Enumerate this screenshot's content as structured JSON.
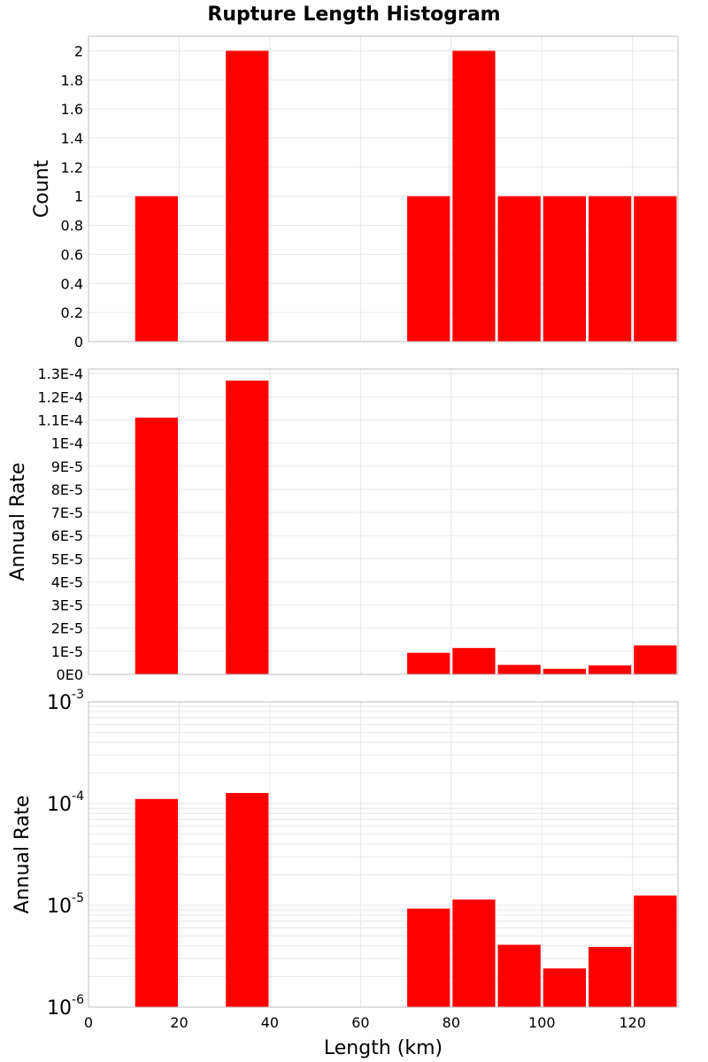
{
  "chart_data": {
    "title": "Rupture Length Histogram",
    "xlabel": "Length (km)",
    "xlim": [
      0,
      130
    ],
    "x_ticks": [
      "0",
      "20",
      "40",
      "60",
      "80",
      "100",
      "120"
    ],
    "bar_color": "#ff0000",
    "grid": true,
    "panels": [
      {
        "type": "bar",
        "ylabel": "Count",
        "yscale": "linear",
        "ylim": [
          0,
          2.1
        ],
        "y_ticks": [
          {
            "v": 0,
            "label": "0"
          },
          {
            "v": 0.2,
            "label": "0.2"
          },
          {
            "v": 0.4,
            "label": "0.4"
          },
          {
            "v": 0.6,
            "label": "0.6"
          },
          {
            "v": 0.8,
            "label": "0.8"
          },
          {
            "v": 1,
            "label": "1"
          },
          {
            "v": 1.2,
            "label": "1.2"
          },
          {
            "v": 1.4,
            "label": "1.4"
          },
          {
            "v": 1.6,
            "label": "1.6"
          },
          {
            "v": 1.8,
            "label": "1.8"
          },
          {
            "v": 2,
            "label": "2"
          }
        ],
        "bars": [
          {
            "x0": 10,
            "x1": 20,
            "value": 1
          },
          {
            "x0": 30,
            "x1": 40,
            "value": 2
          },
          {
            "x0": 70,
            "x1": 80,
            "value": 1
          },
          {
            "x0": 80,
            "x1": 90,
            "value": 2
          },
          {
            "x0": 90,
            "x1": 100,
            "value": 1
          },
          {
            "x0": 100,
            "x1": 110,
            "value": 1
          },
          {
            "x0": 110,
            "x1": 120,
            "value": 1
          },
          {
            "x0": 120,
            "x1": 130,
            "value": 1
          }
        ]
      },
      {
        "type": "bar",
        "ylabel": "Annual Rate",
        "yscale": "linear",
        "ylim": [
          0,
          0.000132
        ],
        "y_ticks": [
          {
            "v": 0,
            "label": "0E0"
          },
          {
            "v": 1e-05,
            "label": "1E-5"
          },
          {
            "v": 2e-05,
            "label": "2E-5"
          },
          {
            "v": 3e-05,
            "label": "3E-5"
          },
          {
            "v": 4e-05,
            "label": "4E-5"
          },
          {
            "v": 5e-05,
            "label": "5E-5"
          },
          {
            "v": 6e-05,
            "label": "6E-5"
          },
          {
            "v": 7e-05,
            "label": "7E-5"
          },
          {
            "v": 8e-05,
            "label": "8E-5"
          },
          {
            "v": 9e-05,
            "label": "9E-5"
          },
          {
            "v": 0.0001,
            "label": "1E-4"
          },
          {
            "v": 0.00011,
            "label": "1.1E-4"
          },
          {
            "v": 0.00012,
            "label": "1.2E-4"
          },
          {
            "v": 0.00013,
            "label": "1.3E-4"
          }
        ],
        "bars": [
          {
            "x0": 10,
            "x1": 20,
            "value": 0.000111
          },
          {
            "x0": 30,
            "x1": 40,
            "value": 0.000127
          },
          {
            "x0": 70,
            "x1": 80,
            "value": 9.3e-06
          },
          {
            "x0": 80,
            "x1": 90,
            "value": 1.14e-05
          },
          {
            "x0": 90,
            "x1": 100,
            "value": 4.1e-06
          },
          {
            "x0": 100,
            "x1": 110,
            "value": 2.4e-06
          },
          {
            "x0": 110,
            "x1": 120,
            "value": 3.9e-06
          },
          {
            "x0": 120,
            "x1": 130,
            "value": 1.25e-05
          }
        ]
      },
      {
        "type": "bar",
        "ylabel": "Annual Rate",
        "yscale": "log",
        "ylim": [
          1e-06,
          0.001
        ],
        "y_ticks": [
          {
            "v": 1e-06,
            "base": "10",
            "exp": "-6"
          },
          {
            "v": 1e-05,
            "base": "10",
            "exp": "-5"
          },
          {
            "v": 0.0001,
            "base": "10",
            "exp": "-4"
          },
          {
            "v": 0.001,
            "base": "10",
            "exp": "-3"
          }
        ],
        "bars": [
          {
            "x0": 10,
            "x1": 20,
            "value": 0.000111
          },
          {
            "x0": 30,
            "x1": 40,
            "value": 0.000127
          },
          {
            "x0": 70,
            "x1": 80,
            "value": 9.3e-06
          },
          {
            "x0": 80,
            "x1": 90,
            "value": 1.14e-05
          },
          {
            "x0": 90,
            "x1": 100,
            "value": 4.1e-06
          },
          {
            "x0": 100,
            "x1": 110,
            "value": 2.4e-06
          },
          {
            "x0": 110,
            "x1": 120,
            "value": 3.9e-06
          },
          {
            "x0": 120,
            "x1": 130,
            "value": 1.25e-05
          }
        ]
      }
    ]
  }
}
